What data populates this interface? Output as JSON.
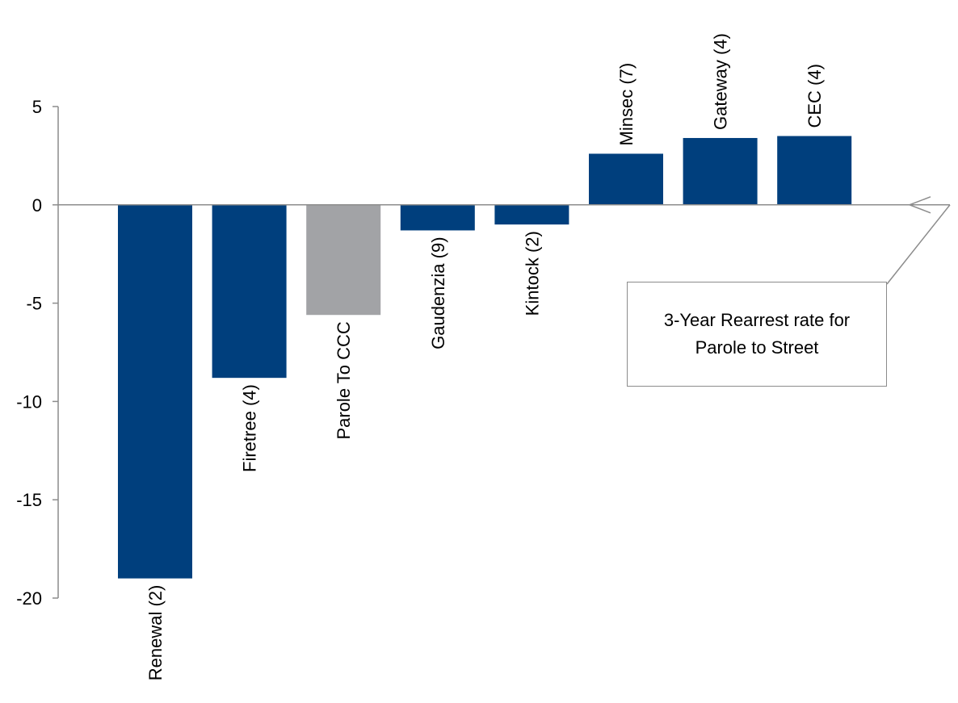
{
  "chart_data": {
    "type": "bar",
    "categories": [
      "Renewal (2)",
      "Firetree (4)",
      "Parole To CCC",
      "Gaudenzia (9)",
      "Kintock (2)",
      "Minsec (7)",
      "Gateway (4)",
      "CEC (4)"
    ],
    "values": [
      -19.0,
      -8.8,
      -5.6,
      -1.3,
      -1.0,
      2.6,
      3.4,
      3.5
    ],
    "bar_colors": [
      "#003f7d",
      "#003f7d",
      "#a2a3a6",
      "#003f7d",
      "#003f7d",
      "#003f7d",
      "#003f7d",
      "#003f7d"
    ],
    "yticks": [
      5,
      0,
      -5,
      -10,
      -15,
      -20
    ],
    "ylim": [
      -20,
      5
    ],
    "annotation": "3-Year Rearrest rate for Parole to Street",
    "grid": false,
    "title": "",
    "xlabel": "",
    "ylabel": ""
  }
}
